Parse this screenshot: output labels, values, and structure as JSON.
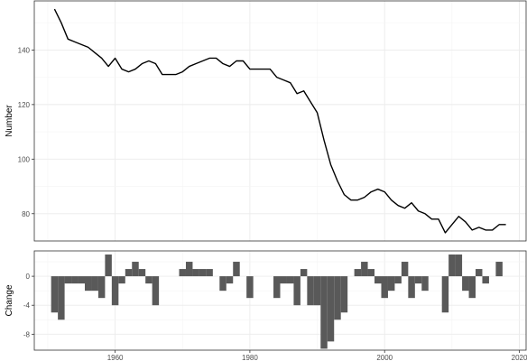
{
  "chart_data": [
    {
      "type": "line",
      "ylabel": "Number",
      "xlim": [
        1948,
        2021
      ],
      "ylim": [
        70,
        158
      ],
      "xticks": [
        1960,
        1980,
        2000,
        2020
      ],
      "yticks": [
        80,
        100,
        120,
        140
      ],
      "grid": true,
      "series": [
        {
          "x": [
            1951,
            1952,
            1953,
            1954,
            1955,
            1956,
            1957,
            1958,
            1959,
            1960,
            1961,
            1962,
            1963,
            1964,
            1965,
            1966,
            1967,
            1968,
            1969,
            1970,
            1971,
            1972,
            1973,
            1974,
            1975,
            1976,
            1977,
            1978,
            1979,
            1980,
            1981,
            1982,
            1983,
            1984,
            1985,
            1986,
            1987,
            1988,
            1989,
            1990,
            1991,
            1992,
            1993,
            1994,
            1995,
            1996,
            1997,
            1998,
            1999,
            2000,
            2001,
            2002,
            2003,
            2004,
            2005,
            2006,
            2007,
            2008,
            2009,
            2010,
            2011,
            2012,
            2013,
            2014,
            2015,
            2016,
            2017,
            2018
          ],
          "values": [
            155,
            150,
            144,
            143,
            142,
            141,
            139,
            137,
            134,
            137,
            133,
            132,
            133,
            135,
            136,
            135,
            131,
            131,
            131,
            132,
            134,
            135,
            136,
            137,
            137,
            135,
            134,
            136,
            136,
            133,
            133,
            133,
            133,
            130,
            129,
            128,
            124,
            125,
            121,
            117,
            107,
            98,
            92,
            87,
            85,
            85,
            86,
            88,
            89,
            88,
            85,
            83,
            82,
            84,
            81,
            80,
            78,
            78,
            73,
            76,
            79,
            77,
            74,
            75,
            74,
            74,
            76,
            76
          ]
        }
      ]
    },
    {
      "type": "bar",
      "ylabel": "Change",
      "xlim": [
        1948,
        2021
      ],
      "ylim": [
        -10.2,
        3.5
      ],
      "xticks": [
        1960,
        1980,
        2000,
        2020
      ],
      "yticks": [
        0,
        -4,
        -8
      ],
      "grid": true,
      "series": [
        {
          "x": [
            1951,
            1952,
            1953,
            1954,
            1955,
            1956,
            1957,
            1958,
            1959,
            1960,
            1961,
            1962,
            1963,
            1964,
            1965,
            1966,
            1970,
            1971,
            1972,
            1973,
            1974,
            1976,
            1977,
            1978,
            1980,
            1984,
            1985,
            1986,
            1987,
            1988,
            1989,
            1990,
            1991,
            1992,
            1993,
            1994,
            1996,
            1997,
            1998,
            1999,
            2000,
            2001,
            2002,
            2003,
            2004,
            2005,
            2006,
            2007,
            2009,
            2010,
            2011,
            2012,
            2013,
            2014,
            2015,
            2017
          ],
          "values": [
            -5,
            -6,
            -1,
            -1,
            -1,
            -2,
            -2,
            -3,
            3,
            -4,
            -1,
            1,
            2,
            1,
            -1,
            -4,
            1,
            2,
            1,
            1,
            1,
            -2,
            -1,
            2,
            -3,
            -3,
            -1,
            -1,
            -4,
            1,
            -4,
            -4,
            -10,
            -9,
            -6,
            -5,
            1,
            2,
            1,
            -1,
            -3,
            -2,
            -1,
            2,
            -3,
            -1,
            -2,
            0,
            -5,
            3,
            3,
            -2,
            -3,
            1,
            -1,
            2
          ]
        }
      ]
    }
  ]
}
